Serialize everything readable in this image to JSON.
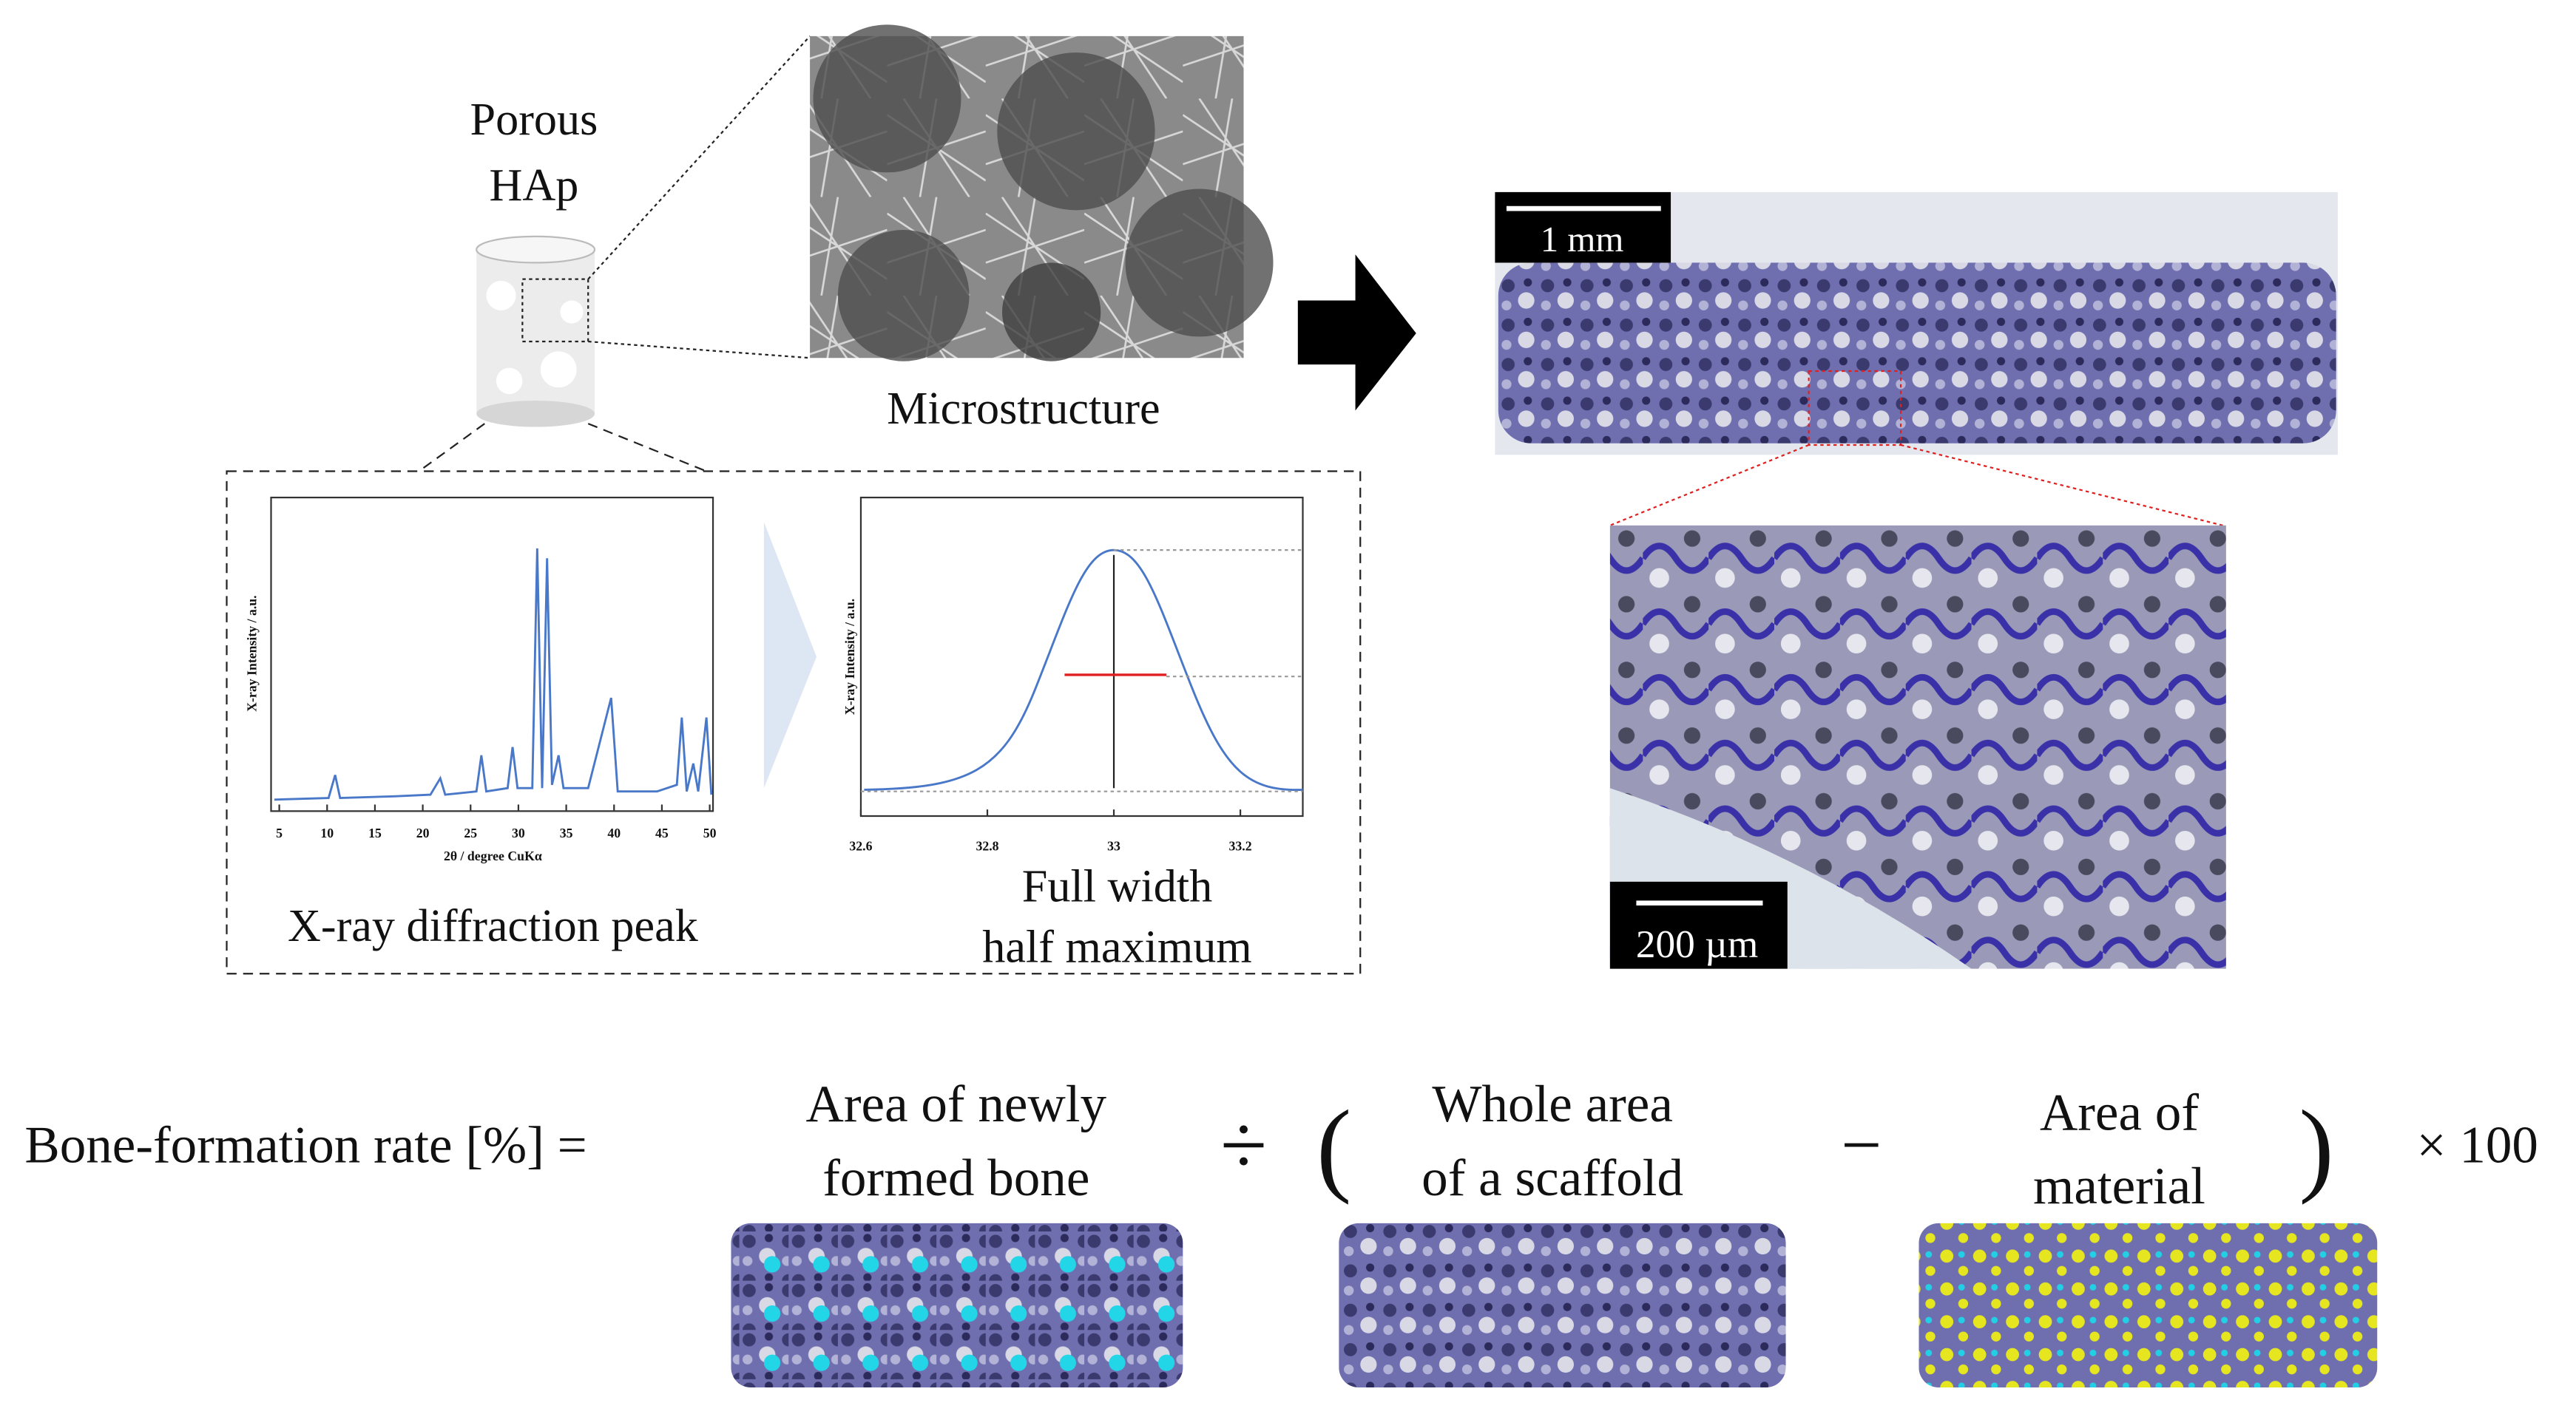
{
  "schematic": {
    "sample_label": [
      "Porous",
      "HAp"
    ],
    "microstructure": "Microstructure"
  },
  "xrd_plot": {
    "y_label": "X-ray Intensity / a.u.",
    "x_label": "2θ / degree CuKα",
    "x_ticks": [
      5,
      10,
      15,
      20,
      25,
      30,
      35,
      40,
      45,
      50
    ],
    "caption": "X-ray diffraction peak"
  },
  "fwhm_plot": {
    "y_label": "X-ray Intensity / a.u.",
    "x_ticks": [
      32.6,
      32.8,
      33,
      33.2
    ],
    "caption": [
      "Full width",
      "half maximum"
    ]
  },
  "histology": {
    "scale_bars": [
      "1 mm",
      "200 µm"
    ]
  },
  "formula": {
    "lhs": "Bone-formation rate [%] =",
    "term1": [
      "Area of newly",
      "formed bone"
    ],
    "divide": "÷",
    "open_paren": "(",
    "term2": [
      "Whole area",
      "of a scaffold"
    ],
    "minus": "−",
    "term3": [
      "Area of",
      "material"
    ],
    "close_paren": ")",
    "multiplier": "× 100"
  }
}
